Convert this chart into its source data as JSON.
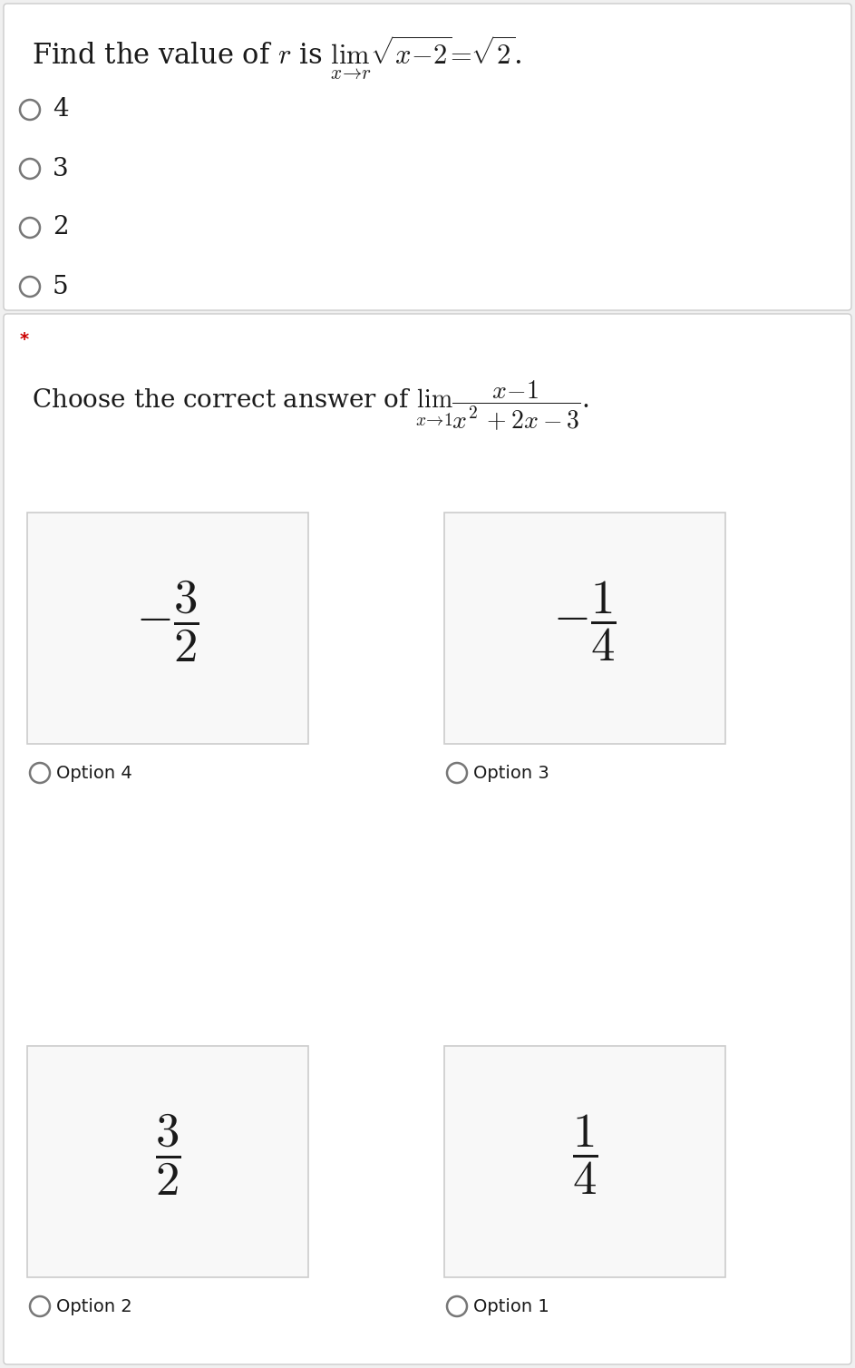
{
  "bg_color": "#f0f0f0",
  "section1_bg": "#ffffff",
  "section2_bg": "#ffffff",
  "divider_color": "#cccccc",
  "box_facecolor": "#f8f8f8",
  "box_border_color": "#cccccc",
  "text_color": "#1a1a1a",
  "circle_edge_color": "#777777",
  "star_color": "#cc0000",
  "options1": [
    "4",
    "3",
    "2",
    "5"
  ],
  "option_labels_top": [
    "Option 4",
    "Option 3"
  ],
  "option_labels_bottom": [
    "Option 2",
    "Option 1"
  ],
  "font_size_title1": 22,
  "font_size_title2": 20,
  "font_size_options1": 20,
  "font_size_answer": 38,
  "font_size_option_label": 14
}
